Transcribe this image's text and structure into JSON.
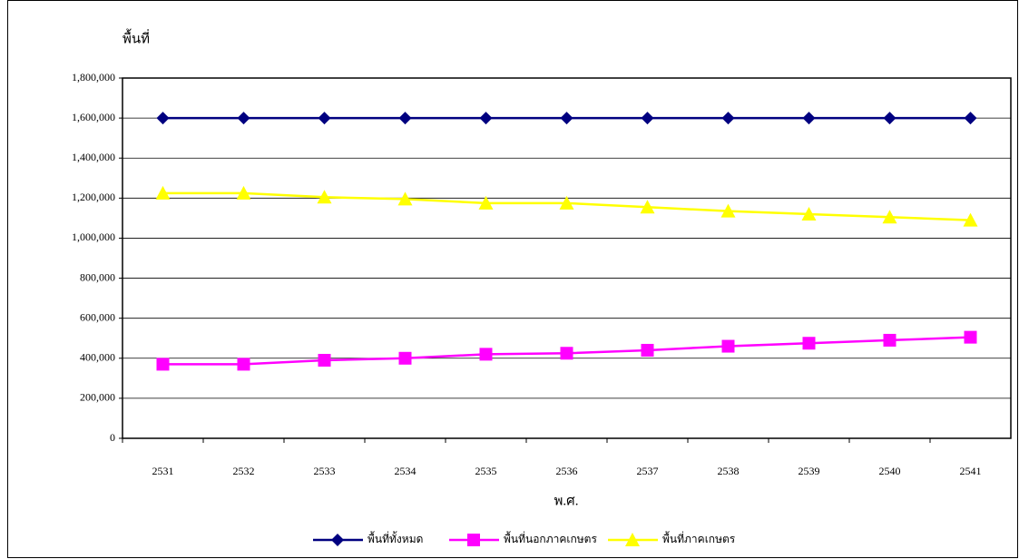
{
  "chart_data": {
    "type": "line",
    "y_label": "พื้นที่",
    "x_label": "พ.ศ.",
    "categories": [
      "2531",
      "2532",
      "2533",
      "2534",
      "2535",
      "2536",
      "2537",
      "2538",
      "2539",
      "2540",
      "2541"
    ],
    "series": [
      {
        "name": "พื้นที่ทั้งหมด",
        "color": "#000080",
        "marker": "diamond",
        "values": [
          1600000,
          1600000,
          1600000,
          1600000,
          1600000,
          1600000,
          1600000,
          1600000,
          1600000,
          1600000,
          1600000
        ]
      },
      {
        "name": "พื้นที่นอกภาคเกษตร",
        "color": "#ff00ff",
        "marker": "square",
        "values": [
          370000,
          370000,
          390000,
          400000,
          420000,
          425000,
          440000,
          460000,
          475000,
          490000,
          505000
        ]
      },
      {
        "name": "พื้นที่ภาคเกษตร",
        "color": "#ffff00",
        "marker": "triangle",
        "values": [
          1225000,
          1225000,
          1205000,
          1195000,
          1175000,
          1175000,
          1155000,
          1135000,
          1120000,
          1105000,
          1090000
        ]
      }
    ],
    "ylim": [
      0,
      1800000
    ],
    "yticks": [
      0,
      {
        "value": 200000,
        "label": "200,000"
      },
      {
        "value": 400000,
        "label": "400,000"
      },
      {
        "value": 600000,
        "label": "600,000"
      },
      {
        "value": 800000,
        "label": "800,000"
      },
      {
        "value": 1000000,
        "label": "1,000,000"
      },
      {
        "value": 1200000,
        "label": "1,200,000"
      },
      {
        "value": 1400000,
        "label": "1,400,000"
      },
      {
        "value": 1600000,
        "label": "1,600,000"
      },
      {
        "value": 1800000,
        "label": "1,800,000"
      }
    ],
    "grid": true,
    "legend": "bottom"
  }
}
